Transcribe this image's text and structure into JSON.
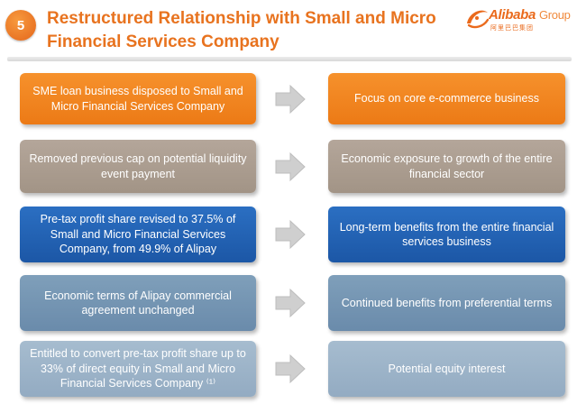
{
  "header": {
    "badge": "5",
    "title": "Restructured Relationship with Small and Micro Financial Services Company",
    "logo_text": "Alibaba",
    "logo_group": "Group",
    "logo_sub": "阿里巴巴集团"
  },
  "rows": [
    {
      "left": "SME loan business disposed to Small and Micro Financial Services Company",
      "right": "Focus on core e-commerce business",
      "color": "#f08520"
    },
    {
      "left": "Removed previous cap on potential liquidity event payment",
      "right": "Economic exposure to growth of the entire financial sector",
      "color": "#ab9d90"
    },
    {
      "left": "Pre-tax profit share revised to 37.5% of Small and Micro Financial Services Company, from 49.9% of Alipay",
      "right": "Long-term benefits from the entire financial services business",
      "color": "#2462b3"
    },
    {
      "left": "Economic terms of Alipay commercial agreement unchanged",
      "right": "Continued benefits from preferential terms",
      "color": "#7394b3"
    },
    {
      "left": "Entitled to convert pre-tax profit share up to 33% of direct equity in Small and Micro Financial Services Company ⁽¹⁾",
      "right": "Potential equity interest",
      "color": "#9cb3c8"
    }
  ],
  "colors": {
    "accent": "#e8731f",
    "arrow": "#cfcfcf"
  }
}
